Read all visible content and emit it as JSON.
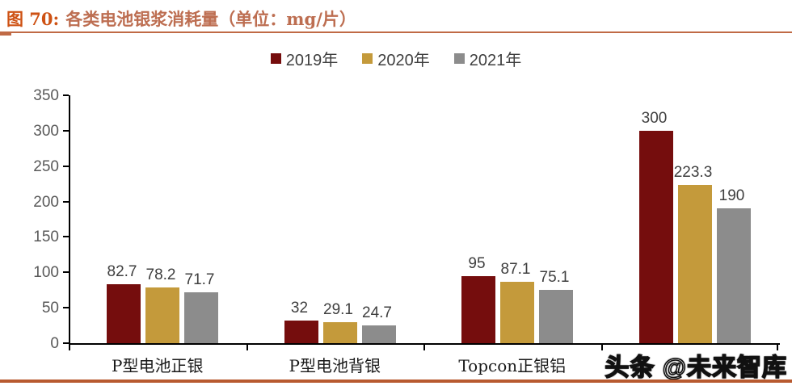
{
  "title": {
    "prefix": "图 70:",
    "text": "各类电池银浆消耗量（单位：mg/片）"
  },
  "watermark": "头条 @未来智库",
  "colors": {
    "series_2019": "#750d0d",
    "series_2020": "#c49a3b",
    "series_2021": "#8c8c8c",
    "title_prefix": "#ce5214",
    "title_text": "#bd6e51",
    "rule": "#b85a30",
    "axis": "#000000",
    "tick_label": "#595959",
    "data_label": "#3f3f3f"
  },
  "chart_data": {
    "type": "bar",
    "figure_label": "图 70",
    "title": "各类电池银浆消耗量",
    "unit": "mg/片",
    "categories": [
      "P型电池正银",
      "P型电池背银",
      "Topcon正银铝",
      ""
    ],
    "series": [
      {
        "name": "2019年",
        "color": "#750d0d",
        "values": [
          82.7,
          32,
          95,
          300
        ]
      },
      {
        "name": "2020年",
        "color": "#c49a3b",
        "values": [
          78.2,
          29.1,
          87.1,
          223.3
        ]
      },
      {
        "name": "2021年",
        "color": "#8c8c8c",
        "values": [
          71.7,
          24.7,
          75.1,
          190
        ]
      }
    ],
    "xlabel": "",
    "ylabel": "",
    "ylim": [
      0,
      350
    ],
    "yticks": [
      0,
      50,
      100,
      150,
      200,
      250,
      300,
      350
    ],
    "grid": false,
    "legend_position": "top",
    "note": "fourth category label obscured by watermark"
  }
}
